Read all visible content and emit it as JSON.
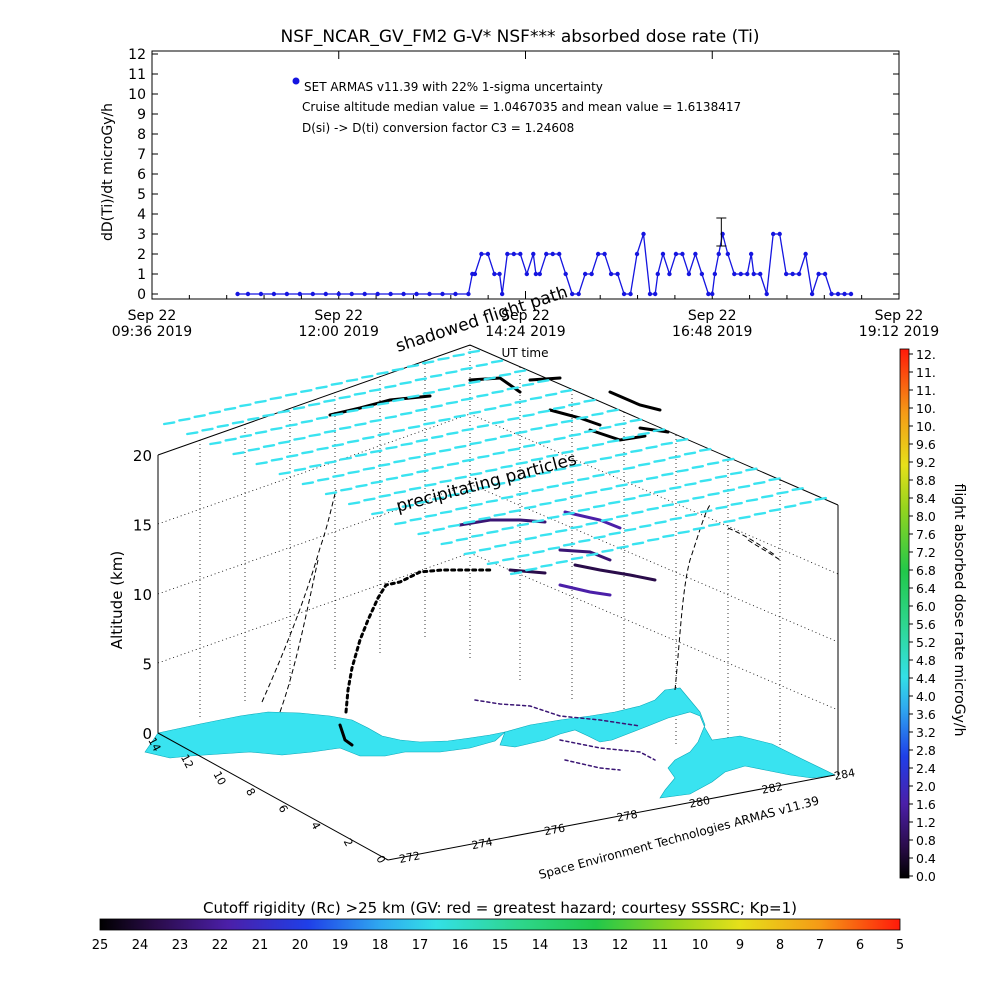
{
  "chart_data": [
    {
      "type": "scatter",
      "title": "NSF_NCAR_GV_FM2 G-V* NSF*** absorbed dose rate (Ti)",
      "ylabel": "dD(Ti)/dt microGy/h",
      "xlabel": "UT time",
      "ylim": [
        0,
        12
      ],
      "yticks": [
        "0",
        "1",
        "2",
        "3",
        "4",
        "5",
        "6",
        "7",
        "8",
        "9",
        "10",
        "11",
        "12"
      ],
      "xlim": [
        "09:36",
        "19:12"
      ],
      "xticks": [
        {
          "date": "Sep 22",
          "time": "09:36 2019"
        },
        {
          "date": "Sep 22",
          "time": "12:00 2019"
        },
        {
          "date": "Sep 22",
          "time": "14:24 2019"
        },
        {
          "date": "Sep 22",
          "time": "16:48 2019"
        },
        {
          "date": "Sep 22",
          "time": "19:12 2019"
        }
      ],
      "annotations": [
        "SET ARMAS v11.39 with 22% 1-sigma uncertainty",
        "Cruise altitude median value = 1.0467035 and mean value = 1.6138417",
        "D(si) -> D(ti) conversion factor C3 = 1.24608"
      ],
      "series_color": "#1515e0",
      "errorbar": {
        "x": "16:55",
        "y": 3.1,
        "low": 2.4,
        "high": 3.8
      },
      "series": [
        {
          "x": [
            "10:42",
            "10:50",
            "11:00",
            "11:10",
            "11:20",
            "11:30",
            "11:40",
            "11:50",
            "12:00",
            "12:10",
            "12:20",
            "12:30",
            "12:40",
            "12:50",
            "13:00",
            "13:10",
            "13:20",
            "13:30",
            "13:40",
            "13:43",
            "13:45",
            "13:50",
            "13:55",
            "14:00",
            "14:04",
            "14:06",
            "14:10",
            "14:15",
            "14:20",
            "14:25",
            "14:30",
            "14:32",
            "14:35",
            "14:40",
            "14:45",
            "14:50",
            "14:55",
            "15:00",
            "15:05",
            "15:10",
            "15:15",
            "15:20",
            "15:25",
            "15:30",
            "15:35",
            "15:40",
            "15:45",
            "15:50",
            "15:55",
            "16:00",
            "16:04",
            "16:06",
            "16:10",
            "16:15",
            "16:20",
            "16:25",
            "16:30",
            "16:35",
            "16:40",
            "16:45",
            "16:48",
            "16:50",
            "16:53",
            "16:56",
            "17:00",
            "17:05",
            "17:10",
            "17:15",
            "17:18",
            "17:20",
            "17:25",
            "17:30",
            "17:35",
            "17:40",
            "17:45",
            "17:50",
            "17:55",
            "18:00",
            "18:05",
            "18:10",
            "18:15",
            "18:20",
            "18:25",
            "18:30",
            "18:35"
          ],
          "y": [
            0,
            0,
            0,
            0,
            0,
            0,
            0,
            0,
            0,
            0,
            0,
            0,
            0,
            0,
            0,
            0,
            0,
            0,
            0,
            1,
            1,
            2,
            2,
            1,
            1,
            0,
            2,
            2,
            2,
            1,
            2,
            1,
            1,
            2,
            2,
            2,
            1,
            0,
            0,
            1,
            1,
            2,
            2,
            1,
            1,
            0,
            0,
            2,
            3,
            0,
            0,
            1,
            2,
            1,
            2,
            2,
            1,
            2,
            1,
            0,
            0,
            1,
            2,
            3,
            2,
            1,
            1,
            1,
            2,
            1,
            1,
            0,
            3,
            3,
            1,
            1,
            1,
            2,
            0,
            1,
            1,
            0,
            0,
            0,
            0
          ]
        }
      ]
    },
    {
      "type": "scatter",
      "title": "",
      "zlabel": "Altitude (km)",
      "zlim": [
        0,
        20
      ],
      "zticks": [
        "0",
        "5",
        "10",
        "15",
        "20"
      ],
      "xlim": [
        272,
        284
      ],
      "xticks": [
        "272",
        "274",
        "276",
        "278",
        "280",
        "282",
        "284"
      ],
      "ylim": [
        0,
        14
      ],
      "yticks": [
        "0",
        "2",
        "4",
        "6",
        "8",
        "10",
        "12",
        "14"
      ],
      "annotations": [
        "shadowed flight path",
        "precipitating particles",
        "Space Environment Technologies ARMAS v11.39"
      ],
      "colorbar_right": {
        "label": "flight absorbed dose rate microGy/h",
        "ticks": [
          "0.0",
          "0.4",
          "0.8",
          "1.2",
          "1.6",
          "2.0",
          "2.4",
          "2.8",
          "3.2",
          "3.6",
          "4.0",
          "4.4",
          "4.8",
          "5.2",
          "5.6",
          "6.0",
          "6.4",
          "6.8",
          "7.2",
          "7.6",
          "8.0",
          "8.4",
          "8.8",
          "9.2",
          "9.6",
          "10.",
          "10.",
          "11.",
          "11.",
          "12."
        ]
      },
      "colorbar_bottom": {
        "label": "Cutoff rigidity (Rc) >25 km (GV: red = greatest hazard; courtesy SSSRC; Kp=1)",
        "ticks": [
          "25",
          "24",
          "23",
          "22",
          "21",
          "20",
          "19",
          "18",
          "17",
          "16",
          "15",
          "14",
          "13",
          "12",
          "11",
          "10",
          "9",
          "8",
          "7",
          "6",
          "5"
        ]
      }
    }
  ]
}
